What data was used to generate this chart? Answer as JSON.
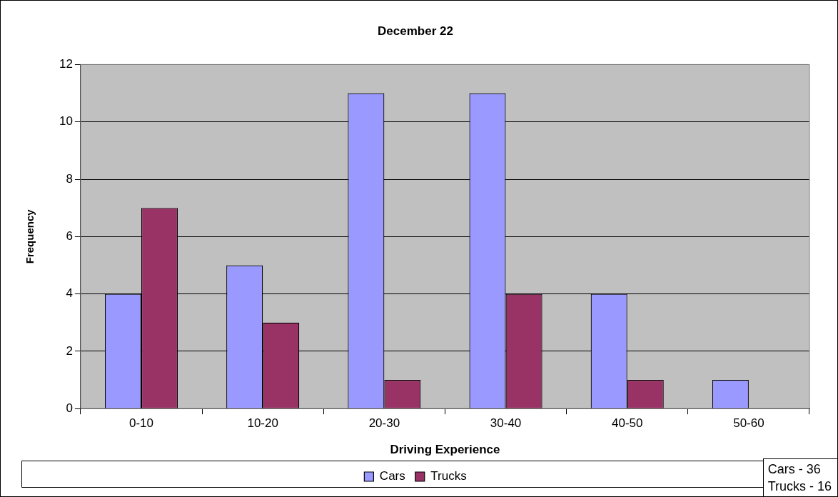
{
  "chart_data": {
    "type": "bar",
    "title": "December 22",
    "xlabel": "Driving Experience",
    "ylabel": "Frequency",
    "categories": [
      "0-10",
      "10-20",
      "20-30",
      "30-40",
      "40-50",
      "50-60"
    ],
    "series": [
      {
        "name": "Cars",
        "color": "#9999ff",
        "values": [
          4,
          5,
          11,
          11,
          4,
          1
        ]
      },
      {
        "name": "Trucks",
        "color": "#993366",
        "values": [
          7,
          3,
          1,
          4,
          1,
          0
        ]
      }
    ],
    "ylim": [
      0,
      12
    ],
    "yticks": [
      0,
      2,
      4,
      6,
      8,
      10,
      12
    ],
    "grid": "y",
    "legend": "bottom",
    "annotations": [
      "Cars - 36",
      "Trucks - 16"
    ]
  }
}
